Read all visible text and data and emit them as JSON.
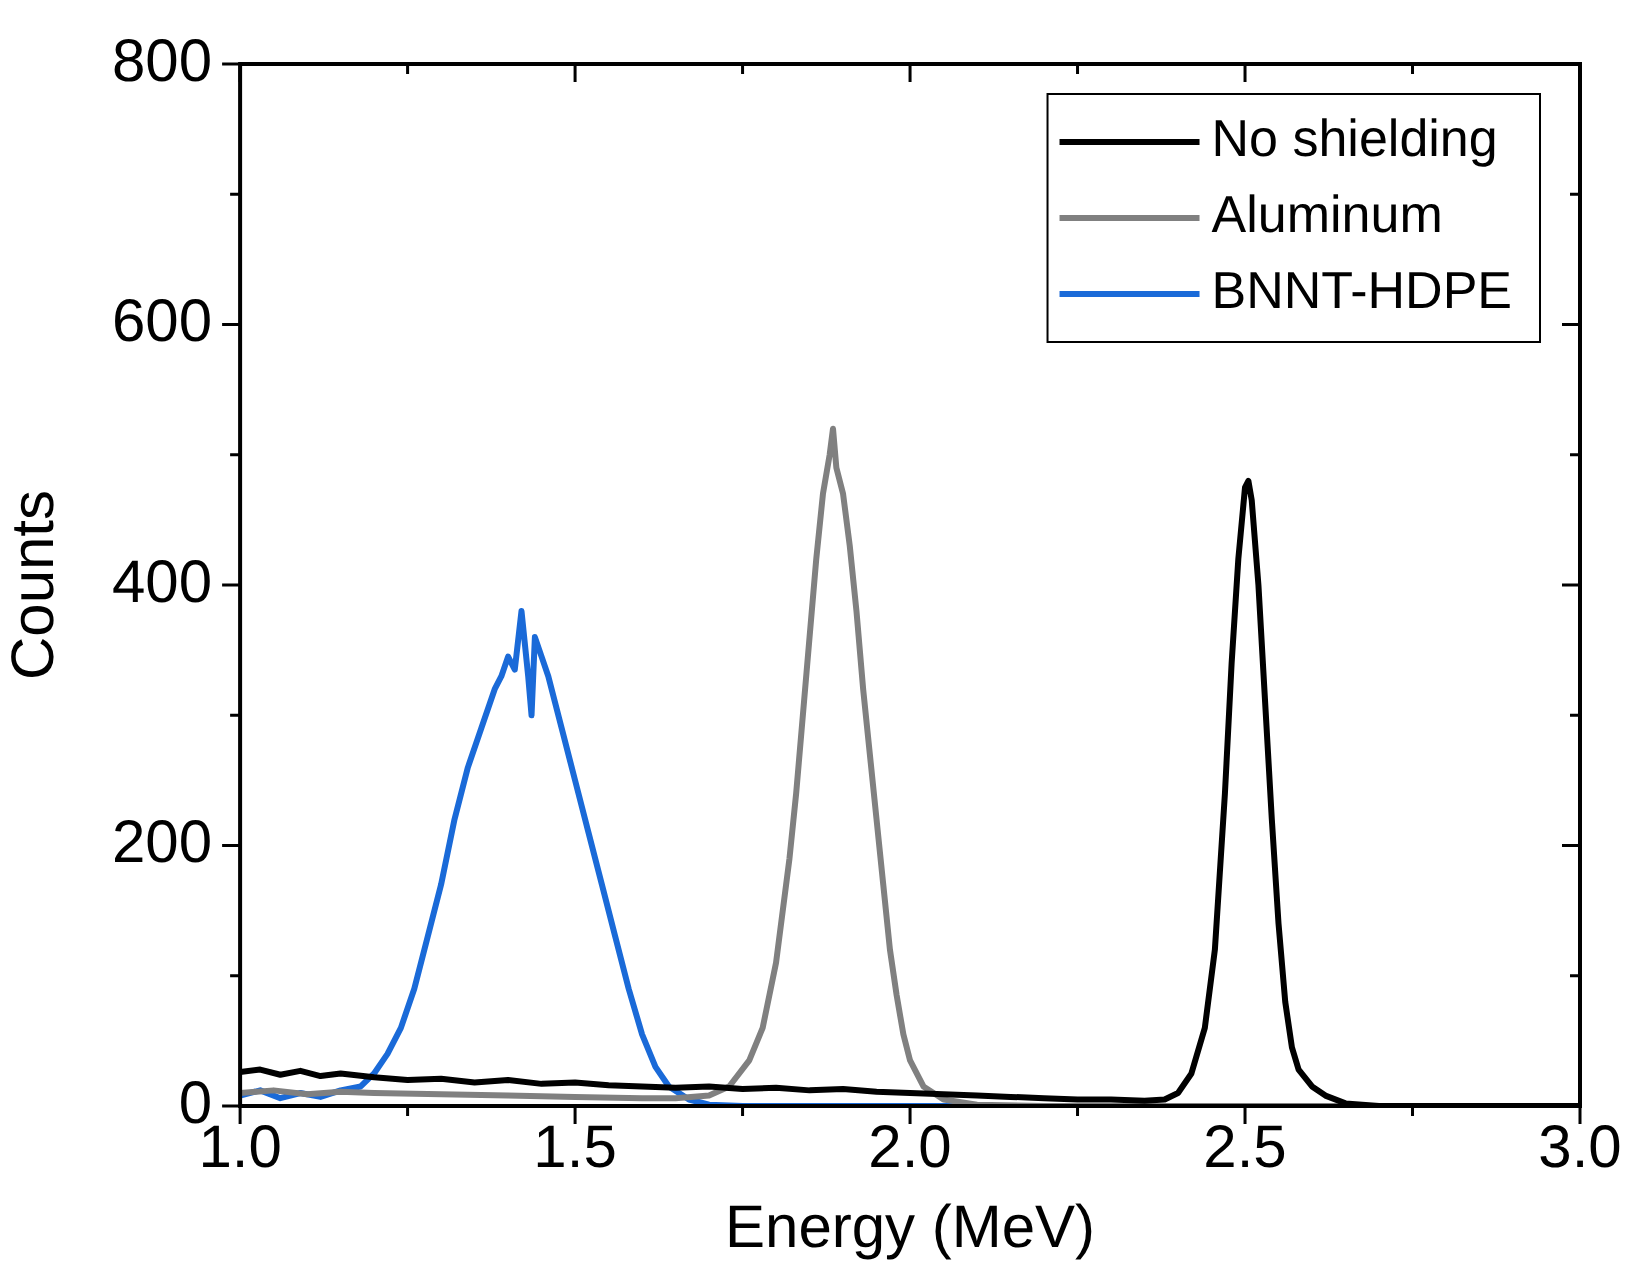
{
  "chart_data": {
    "type": "line",
    "xlabel": "Energy (MeV)",
    "ylabel": "Counts",
    "xlim": [
      1.0,
      3.0
    ],
    "xticks": [
      {
        "value": 1,
        "label": "1.0"
      },
      {
        "value": 1.25,
        "label": null
      },
      {
        "value": 1.5,
        "label": "1.5"
      },
      {
        "value": 1.75,
        "label": null
      },
      {
        "value": 2,
        "label": "2.0"
      },
      {
        "value": 2.25,
        "label": null
      },
      {
        "value": 2.5,
        "label": "2.5"
      },
      {
        "value": 2.75,
        "label": null
      },
      {
        "value": 3,
        "label": "3.0"
      }
    ],
    "ylim": [
      0,
      800
    ],
    "yticks": [
      0,
      {
        "value": 100,
        "label": null
      },
      200,
      {
        "value": 300,
        "label": null
      },
      400,
      {
        "value": 500,
        "label": null
      },
      600,
      {
        "value": 700,
        "label": null
      },
      800
    ],
    "grid": false,
    "legend": "top right",
    "marker": "none",
    "line_style": "solid",
    "series": [
      {
        "name": "No shielding",
        "color": "#000000",
        "x": [
          1.0,
          1.03,
          1.06,
          1.09,
          1.12,
          1.15,
          1.2,
          1.25,
          1.3,
          1.35,
          1.4,
          1.45,
          1.5,
          1.55,
          1.6,
          1.65,
          1.7,
          1.75,
          1.8,
          1.85,
          1.9,
          1.95,
          2.0,
          2.05,
          2.1,
          2.15,
          2.2,
          2.25,
          2.3,
          2.35,
          2.38,
          2.4,
          2.42,
          2.44,
          2.455,
          2.47,
          2.48,
          2.49,
          2.5,
          2.505,
          2.51,
          2.52,
          2.53,
          2.54,
          2.55,
          2.56,
          2.57,
          2.58,
          2.6,
          2.62,
          2.65,
          2.7,
          3.0
        ],
        "values": [
          26,
          28,
          24,
          27,
          23,
          25,
          22,
          20,
          21,
          18,
          20,
          17,
          18,
          16,
          15,
          14,
          15,
          13,
          14,
          12,
          13,
          11,
          10,
          9,
          8,
          7,
          6,
          5,
          5,
          4,
          5,
          10,
          25,
          60,
          120,
          240,
          340,
          420,
          475,
          480,
          465,
          400,
          310,
          220,
          140,
          80,
          45,
          28,
          15,
          8,
          2,
          0,
          0
        ]
      },
      {
        "name": "Aluminum",
        "color": "#808080",
        "x": [
          1.0,
          1.05,
          1.1,
          1.15,
          1.2,
          1.3,
          1.4,
          1.5,
          1.6,
          1.65,
          1.7,
          1.73,
          1.76,
          1.78,
          1.8,
          1.82,
          1.83,
          1.84,
          1.85,
          1.86,
          1.87,
          1.88,
          1.885,
          1.89,
          1.9,
          1.91,
          1.92,
          1.93,
          1.94,
          1.95,
          1.96,
          1.97,
          1.98,
          1.99,
          2.0,
          2.02,
          2.05,
          2.1,
          2.2,
          3.0
        ],
        "values": [
          10,
          12,
          9,
          11,
          10,
          9,
          8,
          7,
          6,
          6,
          8,
          15,
          35,
          60,
          110,
          190,
          240,
          300,
          360,
          420,
          470,
          500,
          520,
          490,
          470,
          430,
          380,
          320,
          270,
          220,
          170,
          120,
          85,
          55,
          35,
          15,
          5,
          1,
          0,
          0
        ]
      },
      {
        "name": "BNNT-HDPE",
        "color": "#1a6ad8",
        "x": [
          1.0,
          1.03,
          1.06,
          1.09,
          1.12,
          1.15,
          1.18,
          1.2,
          1.22,
          1.24,
          1.26,
          1.28,
          1.3,
          1.32,
          1.34,
          1.36,
          1.38,
          1.39,
          1.4,
          1.41,
          1.42,
          1.43,
          1.435,
          1.44,
          1.45,
          1.46,
          1.47,
          1.48,
          1.5,
          1.52,
          1.54,
          1.56,
          1.58,
          1.6,
          1.62,
          1.64,
          1.67,
          1.7,
          1.75,
          3.0
        ],
        "values": [
          8,
          12,
          6,
          10,
          7,
          12,
          15,
          25,
          40,
          60,
          90,
          130,
          170,
          220,
          260,
          290,
          320,
          330,
          345,
          335,
          380,
          330,
          300,
          360,
          345,
          330,
          310,
          290,
          250,
          210,
          170,
          130,
          90,
          55,
          30,
          15,
          5,
          1,
          0,
          0
        ]
      }
    ]
  }
}
